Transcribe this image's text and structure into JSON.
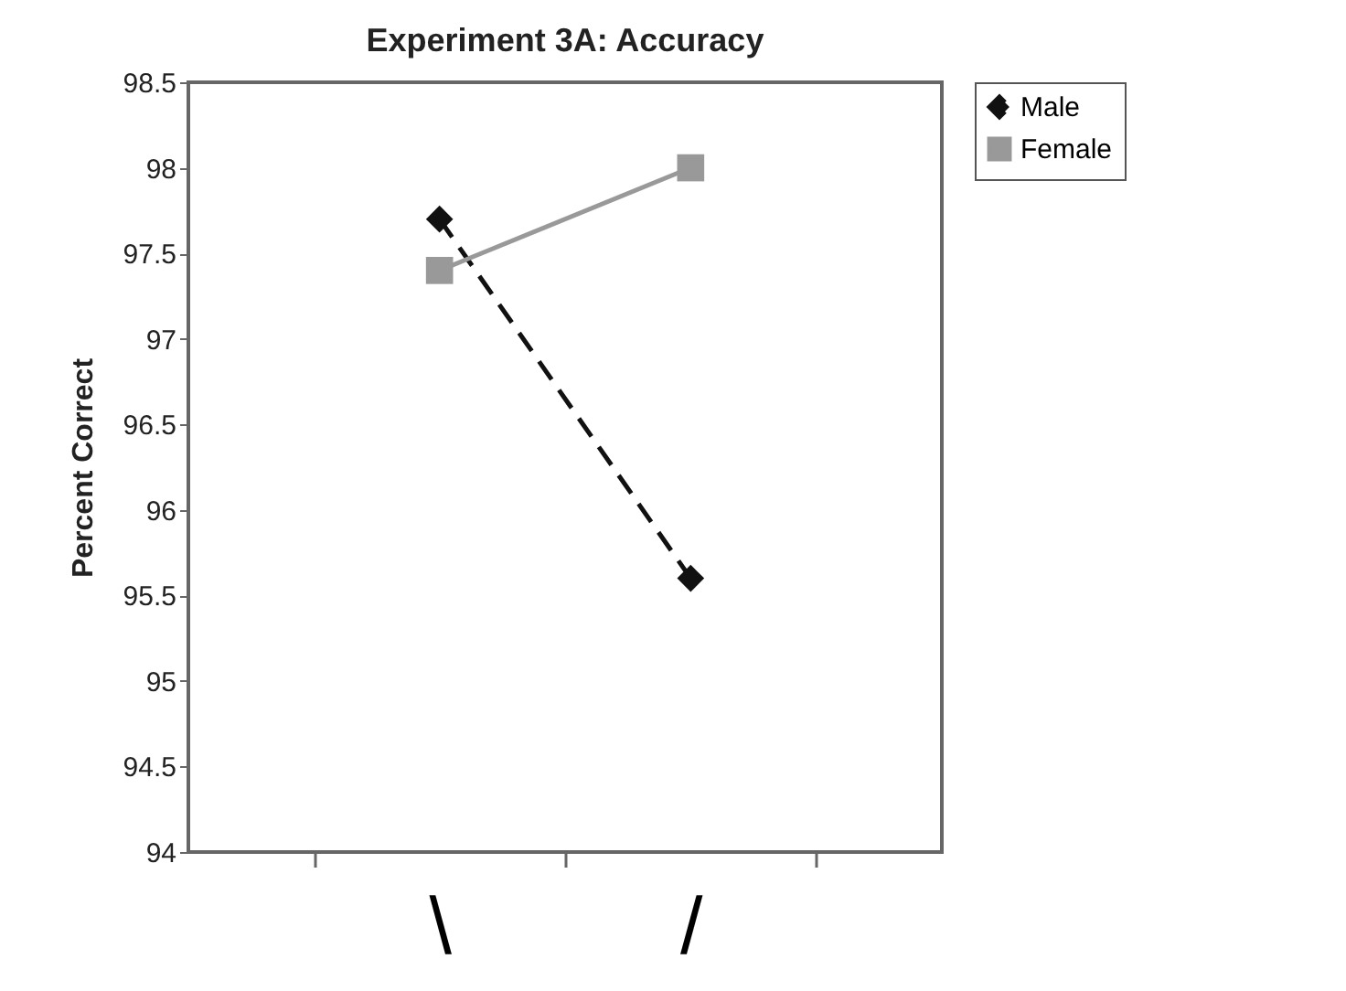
{
  "chart_data": {
    "type": "line",
    "title": "Experiment 3A: Accuracy",
    "ylabel": "Percent Correct",
    "categories": [
      "\\",
      "/"
    ],
    "series": [
      {
        "name": "Male",
        "color": "#111111",
        "values": [
          97.7,
          95.6
        ],
        "marker": "diamond",
        "line_style": "dashed"
      },
      {
        "name": "Female",
        "color": "#999999",
        "values": [
          97.4,
          98.0
        ],
        "marker": "square",
        "line_style": "solid"
      }
    ],
    "ylim": [
      94,
      98.5
    ],
    "yticks": [
      94,
      94.5,
      95,
      95.5,
      96,
      96.5,
      97,
      97.5,
      98,
      98.5
    ],
    "grid": false,
    "legend": "right"
  }
}
